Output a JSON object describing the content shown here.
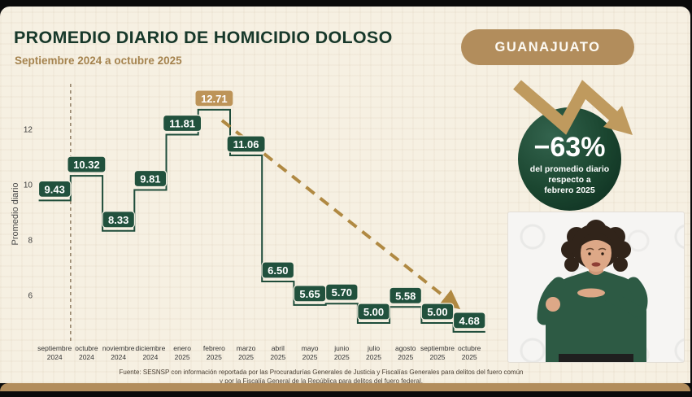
{
  "header": {
    "title": "PROMEDIO DIARIO DE HOMICIDIO DOLOSO",
    "subtitle": "Septiembre 2024 a octubre 2025",
    "state_badge": "GUANAJUATO"
  },
  "chart_data": {
    "type": "step-line",
    "title": "Promedio diario de homicidio doloso, Guanajuato",
    "ylabel": "Promedio diario",
    "yticks": [
      6,
      8,
      10,
      12
    ],
    "ylim": [
      4,
      13.5
    ],
    "grid": false,
    "categories": [
      [
        "septiembre",
        "2024"
      ],
      [
        "octubre",
        "2024"
      ],
      [
        "noviembre",
        "2024"
      ],
      [
        "diciembre",
        "2024"
      ],
      [
        "enero",
        "2025"
      ],
      [
        "febrero",
        "2025"
      ],
      [
        "marzo",
        "2025"
      ],
      [
        "abril",
        "2025"
      ],
      [
        "mayo",
        "2025"
      ],
      [
        "junio",
        "2025"
      ],
      [
        "julio",
        "2025"
      ],
      [
        "agosto",
        "2025"
      ],
      [
        "septiembre",
        "2025"
      ],
      [
        "octubre",
        "2025"
      ]
    ],
    "values": [
      9.43,
      10.32,
      8.33,
      9.81,
      11.81,
      12.71,
      11.06,
      6.5,
      5.65,
      5.7,
      5.0,
      5.58,
      5.0,
      4.68
    ],
    "highlight_index": 5,
    "annotations": {
      "vertical_dashed_line_after_index": 0,
      "trend_arrow": {
        "from_month": "febrero 2025",
        "to_month": "octubre 2025",
        "style": "dashed-declining"
      }
    }
  },
  "kpi": {
    "value": "−63%",
    "description_lines": [
      "del promedio diario",
      "respecto a",
      "febrero 2025"
    ]
  },
  "footer": {
    "source_line1": "Fuente: SESNSP con información reportada por las Procuradurías Generales de Justicia y Fiscalías Generales para delitos del fuero común",
    "source_line2": "y por la Fiscalía General de la República para delitos del fuero federal."
  },
  "colors": {
    "line": "#1e4c3a",
    "badge": "#21513d",
    "badge_highlight": "#bd9458",
    "trend": "#b08942",
    "dashed_guide": "#97866c",
    "accent_tan": "#b28d5c",
    "background": "#f6f0e2",
    "kpi_circle_dark": "#0c2b1e",
    "kpi_circle_light": "#2e5f4a"
  }
}
